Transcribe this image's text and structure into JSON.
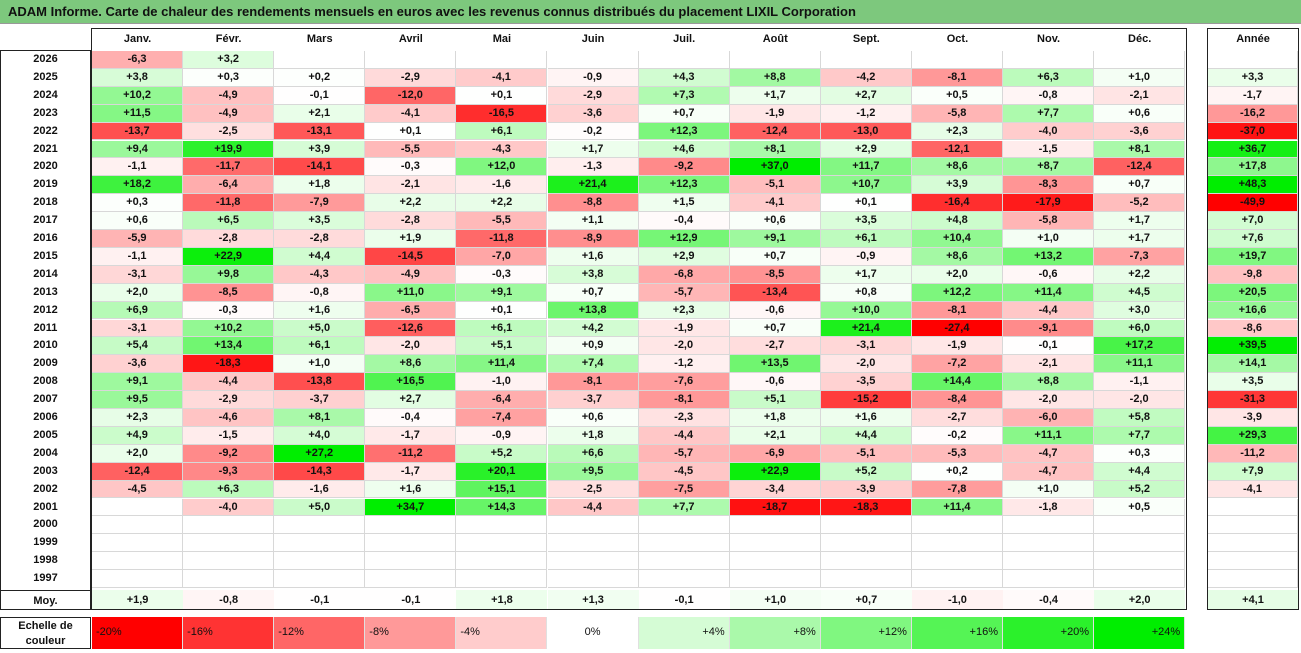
{
  "title": "ADAM Informe. Carte de chaleur des rendements mensuels en euros avec les revenus connus distribués du placement LIXIL Corporation",
  "chart_data": {
    "type": "heatmap",
    "months": [
      "Janv.",
      "Févr.",
      "Mars",
      "Avril",
      "Mai",
      "Juin",
      "Juil.",
      "Août",
      "Sept.",
      "Oct.",
      "Nov.",
      "Déc."
    ],
    "year_header": "Année",
    "rows": [
      {
        "year": "2026",
        "values": [
          "-6,3",
          "+3,2",
          "",
          "",
          "",
          "",
          "",
          "",
          "",
          "",
          "",
          ""
        ],
        "annual": ""
      },
      {
        "year": "2025",
        "values": [
          "+3,8",
          "+0,3",
          "+0,2",
          "-2,9",
          "-4,1",
          "-0,9",
          "+4,3",
          "+8,8",
          "-4,2",
          "-8,1",
          "+6,3",
          "+1,0"
        ],
        "annual": "+3,3"
      },
      {
        "year": "2024",
        "values": [
          "+10,2",
          "-4,9",
          "-0,1",
          "-12,0",
          "+0,1",
          "-2,9",
          "+7,3",
          "+1,7",
          "+2,7",
          "+0,5",
          "-0,8",
          "-2,1"
        ],
        "annual": "-1,7"
      },
      {
        "year": "2023",
        "values": [
          "+11,5",
          "-4,9",
          "+2,1",
          "-4,1",
          "-16,5",
          "-3,6",
          "+0,7",
          "-1,9",
          "-1,2",
          "-5,8",
          "+7,7",
          "+0,6"
        ],
        "annual": "-16,2"
      },
      {
        "year": "2022",
        "values": [
          "-13,7",
          "-2,5",
          "-13,1",
          "+0,1",
          "+6,1",
          "-0,2",
          "+12,3",
          "-12,4",
          "-13,0",
          "+2,3",
          "-4,0",
          "-3,6"
        ],
        "annual": "-37,0"
      },
      {
        "year": "2021",
        "values": [
          "+9,4",
          "+19,9",
          "+3,9",
          "-5,5",
          "-4,3",
          "+1,7",
          "+4,6",
          "+8,1",
          "+2,9",
          "-12,1",
          "-1,5",
          "+8,1"
        ],
        "annual": "+36,7"
      },
      {
        "year": "2020",
        "values": [
          "-1,1",
          "-11,7",
          "-14,1",
          "-0,3",
          "+12,0",
          "-1,3",
          "-9,2",
          "+37,0",
          "+11,7",
          "+8,6",
          "+8,7",
          "-12,4"
        ],
        "annual": "+17,8"
      },
      {
        "year": "2019",
        "values": [
          "+18,2",
          "-6,4",
          "+1,8",
          "-2,1",
          "-1,6",
          "+21,4",
          "+12,3",
          "-5,1",
          "+10,7",
          "+3,9",
          "-8,3",
          "+0,7"
        ],
        "annual": "+48,3"
      },
      {
        "year": "2018",
        "values": [
          "+0,3",
          "-11,8",
          "-7,9",
          "+2,2",
          "+2,2",
          "-8,8",
          "+1,5",
          "-4,1",
          "+0,1",
          "-16,4",
          "-17,9",
          "-5,2"
        ],
        "annual": "-49,9"
      },
      {
        "year": "2017",
        "values": [
          "+0,6",
          "+6,5",
          "+3,5",
          "-2,8",
          "-5,5",
          "+1,1",
          "-0,4",
          "+0,6",
          "+3,5",
          "+4,8",
          "-5,8",
          "+1,7"
        ],
        "annual": "+7,0"
      },
      {
        "year": "2016",
        "values": [
          "-5,9",
          "-2,8",
          "-2,8",
          "+1,9",
          "-11,8",
          "-8,9",
          "+12,9",
          "+9,1",
          "+6,1",
          "+10,4",
          "+1,0",
          "+1,7"
        ],
        "annual": "+7,6"
      },
      {
        "year": "2015",
        "values": [
          "-1,1",
          "+22,9",
          "+4,4",
          "-14,5",
          "-7,0",
          "+1,6",
          "+2,9",
          "+0,7",
          "-0,9",
          "+8,6",
          "+13,2",
          "-7,3"
        ],
        "annual": "+19,7"
      },
      {
        "year": "2014",
        "values": [
          "-3,1",
          "+9,8",
          "-4,3",
          "-4,9",
          "-0,3",
          "+3,8",
          "-6,8",
          "-8,5",
          "+1,7",
          "+2,0",
          "-0,6",
          "+2,2"
        ],
        "annual": "-9,8"
      },
      {
        "year": "2013",
        "values": [
          "+2,0",
          "-8,5",
          "-0,8",
          "+11,0",
          "+9,1",
          "+0,7",
          "-5,7",
          "-13,4",
          "+0,8",
          "+12,2",
          "+11,4",
          "+4,5"
        ],
        "annual": "+20,5"
      },
      {
        "year": "2012",
        "values": [
          "+6,9",
          "-0,3",
          "+1,6",
          "-6,5",
          "+0,1",
          "+13,8",
          "+2,3",
          "-0,6",
          "+10,0",
          "-8,1",
          "-4,4",
          "+3,0"
        ],
        "annual": "+16,6"
      },
      {
        "year": "2011",
        "values": [
          "-3,1",
          "+10,2",
          "+5,0",
          "-12,6",
          "+6,1",
          "+4,2",
          "-1,9",
          "+0,7",
          "+21,4",
          "-27,4",
          "-9,1",
          "+6,0"
        ],
        "annual": "-8,6"
      },
      {
        "year": "2010",
        "values": [
          "+5,4",
          "+13,4",
          "+6,1",
          "-2,0",
          "+5,1",
          "+0,9",
          "-2,0",
          "-2,7",
          "-3,1",
          "-1,9",
          "-0,1",
          "+17,2"
        ],
        "annual": "+39,5"
      },
      {
        "year": "2009",
        "values": [
          "-3,6",
          "-18,3",
          "+1,0",
          "+8,6",
          "+11,4",
          "+7,4",
          "-1,2",
          "+13,5",
          "-2,0",
          "-7,2",
          "-2,1",
          "+11,1"
        ],
        "annual": "+14,1"
      },
      {
        "year": "2008",
        "values": [
          "+9,1",
          "-4,4",
          "-13,8",
          "+16,5",
          "-1,0",
          "-8,1",
          "-7,6",
          "-0,6",
          "-3,5",
          "+14,4",
          "+8,8",
          "-1,1"
        ],
        "annual": "+3,5"
      },
      {
        "year": "2007",
        "values": [
          "+9,5",
          "-2,9",
          "-3,7",
          "+2,7",
          "-6,4",
          "-3,7",
          "-8,1",
          "+5,1",
          "-15,2",
          "-8,4",
          "-2,0",
          "-2,0"
        ],
        "annual": "-31,3"
      },
      {
        "year": "2006",
        "values": [
          "+2,3",
          "-4,6",
          "+8,1",
          "-0,4",
          "-7,4",
          "+0,6",
          "-2,3",
          "+1,8",
          "+1,6",
          "-2,7",
          "-6,0",
          "+5,8"
        ],
        "annual": "-3,9"
      },
      {
        "year": "2005",
        "values": [
          "+4,9",
          "-1,5",
          "+4,0",
          "-1,7",
          "-0,9",
          "+1,8",
          "-4,4",
          "+2,1",
          "+4,4",
          "-0,2",
          "+11,1",
          "+7,7"
        ],
        "annual": "+29,3"
      },
      {
        "year": "2004",
        "values": [
          "+2,0",
          "-9,2",
          "+27,2",
          "-11,2",
          "+5,2",
          "+6,6",
          "-5,7",
          "-6,9",
          "-5,1",
          "-5,3",
          "-4,7",
          "+0,3"
        ],
        "annual": "-11,2"
      },
      {
        "year": "2003",
        "values": [
          "-12,4",
          "-9,3",
          "-14,3",
          "-1,7",
          "+20,1",
          "+9,5",
          "-4,5",
          "+22,9",
          "+5,2",
          "+0,2",
          "-4,7",
          "+4,4"
        ],
        "annual": "+7,9"
      },
      {
        "year": "2002",
        "values": [
          "-4,5",
          "+6,3",
          "-1,6",
          "+1,6",
          "+15,1",
          "-2,5",
          "-7,5",
          "-3,4",
          "-3,9",
          "-7,8",
          "+1,0",
          "+5,2"
        ],
        "annual": "-4,1"
      },
      {
        "year": "2001",
        "values": [
          "",
          "-4,0",
          "+5,0",
          "+34,7",
          "+14,3",
          "-4,4",
          "+7,7",
          "-18,7",
          "-18,3",
          "+11,4",
          "-1,8",
          "+0,5"
        ],
        "annual": ""
      },
      {
        "year": "2000",
        "values": [
          "",
          "",
          "",
          "",
          "",
          "",
          "",
          "",
          "",
          "",
          "",
          ""
        ],
        "annual": ""
      },
      {
        "year": "1999",
        "values": [
          "",
          "",
          "",
          "",
          "",
          "",
          "",
          "",
          "",
          "",
          "",
          ""
        ],
        "annual": ""
      },
      {
        "year": "1998",
        "values": [
          "",
          "",
          "",
          "",
          "",
          "",
          "",
          "",
          "",
          "",
          "",
          ""
        ],
        "annual": ""
      },
      {
        "year": "1997",
        "values": [
          "",
          "",
          "",
          "",
          "",
          "",
          "",
          "",
          "",
          "",
          "",
          ""
        ],
        "annual": ""
      }
    ],
    "average": {
      "label": "Moy.",
      "values": [
        "+1,9",
        "-0,8",
        "-0,1",
        "-0,1",
        "+1,8",
        "+1,3",
        "-0,1",
        "+1,0",
        "+0,7",
        "-1,0",
        "-0,4",
        "+2,0"
      ],
      "annual": "+4,1"
    },
    "scale": {
      "label": "Echelle de couleur",
      "items": [
        {
          "label": "-20%",
          "value": -20
        },
        {
          "label": "-16%",
          "value": -16
        },
        {
          "label": "-12%",
          "value": -12
        },
        {
          "label": "-8%",
          "value": -8
        },
        {
          "label": "-4%",
          "value": -4
        },
        {
          "label": "0%",
          "value": 0
        },
        {
          "label": "+4%",
          "value": 4
        },
        {
          "label": "+8%",
          "value": 8
        },
        {
          "label": "+12%",
          "value": 12
        },
        {
          "label": "+16%",
          "value": 16
        },
        {
          "label": "+20%",
          "value": 20
        },
        {
          "label": "+24%",
          "value": 24
        }
      ]
    },
    "colors": {
      "title_bar": "#7dc87d",
      "negative_max": "#ff0000",
      "positive_max": "#00ee00",
      "neutral": "#ffffff"
    },
    "monthly_color_range": [
      -20,
      24
    ],
    "annual_color_range": [
      -40,
      40
    ]
  }
}
